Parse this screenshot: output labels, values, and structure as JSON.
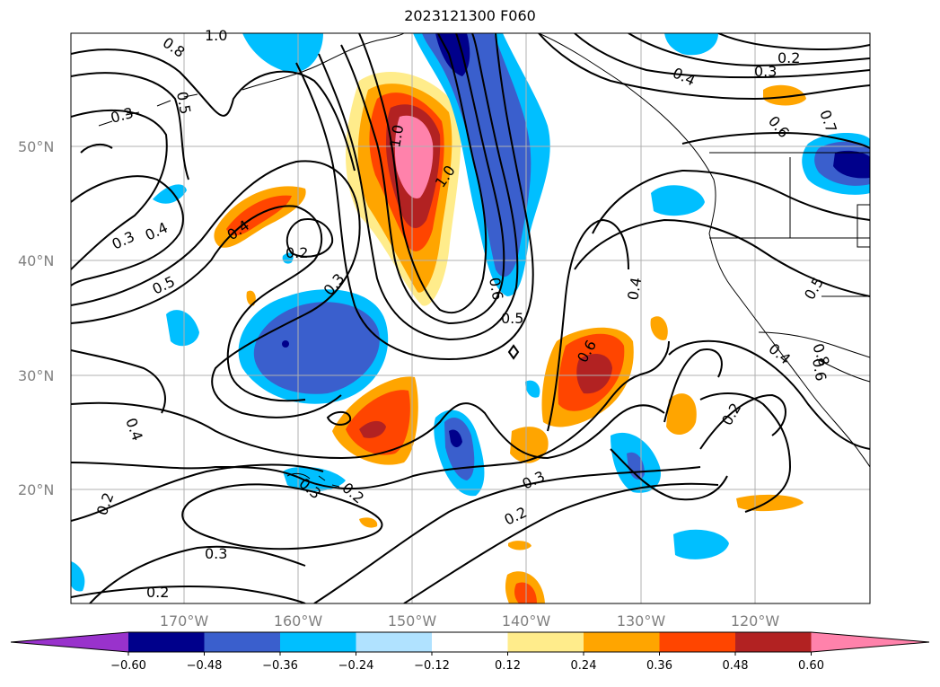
{
  "title": "2023121300 F060",
  "lat_labels": [
    "50°N",
    "40°N",
    "30°N",
    "20°N"
  ],
  "lon_labels": [
    "170°W",
    "160°W",
    "150°W",
    "140°W",
    "130°W",
    "120°W"
  ],
  "colorbar": {
    "colors": [
      "#9932cc",
      "#00008b",
      "#3a5fcd",
      "#00bfff",
      "#b0e2ff",
      "#ffffff",
      "#ffec8b",
      "#ffa500",
      "#ff4500",
      "#b22222",
      "#ff82ab"
    ],
    "tick_labels": [
      "−0.60",
      "−0.48",
      "−0.36",
      "−0.24",
      "−0.12",
      "0.12",
      "0.24",
      "0.36",
      "0.48",
      "0.60"
    ]
  },
  "contour_labels": [
    "0.8",
    "1.0",
    "0.5",
    "0.3",
    "0.3",
    "0.4",
    "0.5",
    "0.4",
    "0.2",
    "0.3",
    "1.0",
    "1.0",
    "0.6",
    "0.5",
    "0.4",
    "0.2",
    "0.3",
    "0.4",
    "0.6",
    "0.2",
    "0.7",
    "0.6",
    "0.5",
    "0.8",
    "0.4",
    "0.6",
    "0.2",
    "0.3",
    "0.2",
    "0.4",
    "0.2",
    "0.3",
    "0.3",
    "0.2"
  ]
}
